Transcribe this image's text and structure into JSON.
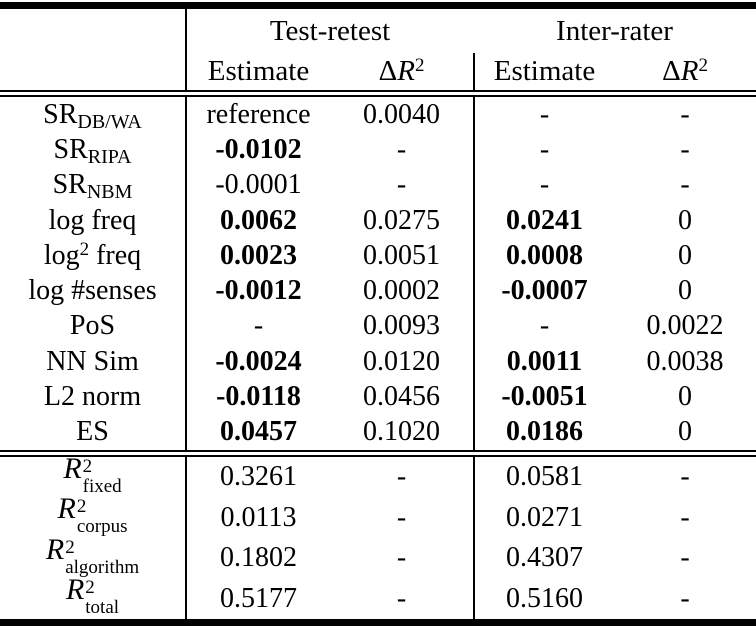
{
  "header": {
    "groups": [
      {
        "label": "Test-retest",
        "estimate": "Estimate",
        "delta": "Δ",
        "r": "R",
        "sup": "2"
      },
      {
        "label": "Inter-rater",
        "estimate": "Estimate",
        "delta": "Δ",
        "r": "R",
        "sup": "2"
      }
    ]
  },
  "body": {
    "rows": [
      {
        "label": {
          "pre": "SR",
          "sub": "DB/WA"
        },
        "cells": [
          {
            "t": "reference",
            "b": false
          },
          {
            "t": "0.0040",
            "b": false
          },
          {
            "t": "-",
            "b": false
          },
          {
            "t": "-",
            "b": false
          }
        ]
      },
      {
        "label": {
          "pre": "SR",
          "sub": "RIPA"
        },
        "cells": [
          {
            "t": "-0.0102",
            "b": true
          },
          {
            "t": "-",
            "b": false
          },
          {
            "t": "-",
            "b": false
          },
          {
            "t": "-",
            "b": false
          }
        ]
      },
      {
        "label": {
          "pre": "SR",
          "sub": "NBM"
        },
        "cells": [
          {
            "t": "-0.0001",
            "b": false
          },
          {
            "t": "-",
            "b": false
          },
          {
            "t": "-",
            "b": false
          },
          {
            "t": "-",
            "b": false
          }
        ]
      },
      {
        "label": {
          "pre": "log freq"
        },
        "cells": [
          {
            "t": "0.0062",
            "b": true
          },
          {
            "t": "0.0275",
            "b": false
          },
          {
            "t": "0.0241",
            "b": true
          },
          {
            "t": "0",
            "b": false
          }
        ]
      },
      {
        "label": {
          "pre": "log",
          "sup": "2",
          "post": " freq"
        },
        "cells": [
          {
            "t": "0.0023",
            "b": true
          },
          {
            "t": "0.0051",
            "b": false
          },
          {
            "t": "0.0008",
            "b": true
          },
          {
            "t": "0",
            "b": false
          }
        ]
      },
      {
        "label": {
          "pre": "log #senses"
        },
        "cells": [
          {
            "t": "-0.0012",
            "b": true
          },
          {
            "t": "0.0002",
            "b": false
          },
          {
            "t": "-0.0007",
            "b": true
          },
          {
            "t": "0",
            "b": false
          }
        ]
      },
      {
        "label": {
          "pre": "PoS"
        },
        "cells": [
          {
            "t": "-",
            "b": false
          },
          {
            "t": "0.0093",
            "b": false
          },
          {
            "t": "-",
            "b": false
          },
          {
            "t": "0.0022",
            "b": false
          }
        ]
      },
      {
        "label": {
          "pre": "NN Sim"
        },
        "cells": [
          {
            "t": "-0.0024",
            "b": true
          },
          {
            "t": "0.0120",
            "b": false
          },
          {
            "t": "0.0011",
            "b": true
          },
          {
            "t": "0.0038",
            "b": false
          }
        ]
      },
      {
        "label": {
          "pre": "L2 norm"
        },
        "cells": [
          {
            "t": "-0.0118",
            "b": true
          },
          {
            "t": "0.0456",
            "b": false
          },
          {
            "t": "-0.0051",
            "b": true
          },
          {
            "t": "0",
            "b": false
          }
        ]
      },
      {
        "label": {
          "pre": "ES"
        },
        "cells": [
          {
            "t": "0.0457",
            "b": true
          },
          {
            "t": "0.1020",
            "b": false
          },
          {
            "t": "0.0186",
            "b": true
          },
          {
            "t": "0",
            "b": false
          }
        ]
      }
    ]
  },
  "footer": {
    "rows": [
      {
        "label": {
          "r": "R",
          "sup": "2",
          "sub": "fixed"
        },
        "cells": [
          {
            "t": "0.3261",
            "b": false
          },
          {
            "t": "-",
            "b": false
          },
          {
            "t": "0.0581",
            "b": false
          },
          {
            "t": "-",
            "b": false
          }
        ]
      },
      {
        "label": {
          "r": "R",
          "sup": "2",
          "sub": "corpus"
        },
        "cells": [
          {
            "t": "0.0113",
            "b": false
          },
          {
            "t": "-",
            "b": false
          },
          {
            "t": "0.0271",
            "b": false
          },
          {
            "t": "-",
            "b": false
          }
        ]
      },
      {
        "label": {
          "r": "R",
          "sup": "2",
          "sub": "algorithm"
        },
        "cells": [
          {
            "t": "0.1802",
            "b": false
          },
          {
            "t": "-",
            "b": false
          },
          {
            "t": "0.4307",
            "b": false
          },
          {
            "t": "-",
            "b": false
          }
        ]
      },
      {
        "label": {
          "r": "R",
          "sup": "2",
          "sub": "total"
        },
        "cells": [
          {
            "t": "0.5177",
            "b": false
          },
          {
            "t": "-",
            "b": false
          },
          {
            "t": "0.5160",
            "b": false
          },
          {
            "t": "-",
            "b": false
          }
        ]
      }
    ]
  }
}
